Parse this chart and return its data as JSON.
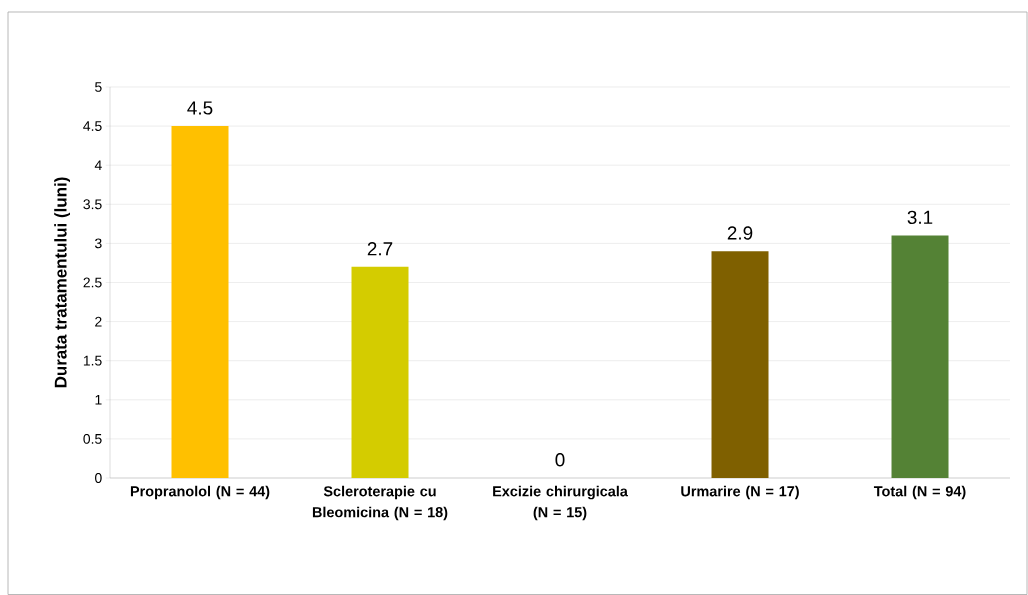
{
  "chart_data": {
    "type": "bar",
    "ylabel": "Durata tratamentului  (luni)",
    "categories": [
      "Propranolol (N = 44)",
      "Scleroterapie cu Bleomicina (N = 18)",
      "Excizie chirurgicala (N = 15)",
      "Urmarire (N = 17)",
      "Total (N = 94)"
    ],
    "values": [
      4.5,
      2.7,
      0,
      2.9,
      3.1
    ],
    "colors": [
      "#ffc000",
      "#d4cc00",
      "#a9a9a9",
      "#7f6000",
      "#548235"
    ],
    "ylim": [
      0,
      5
    ],
    "yticks": [
      0,
      0.5,
      1,
      1.5,
      2,
      2.5,
      3,
      3.5,
      4,
      4.5,
      5
    ],
    "grid": "y",
    "data_labels": true
  }
}
